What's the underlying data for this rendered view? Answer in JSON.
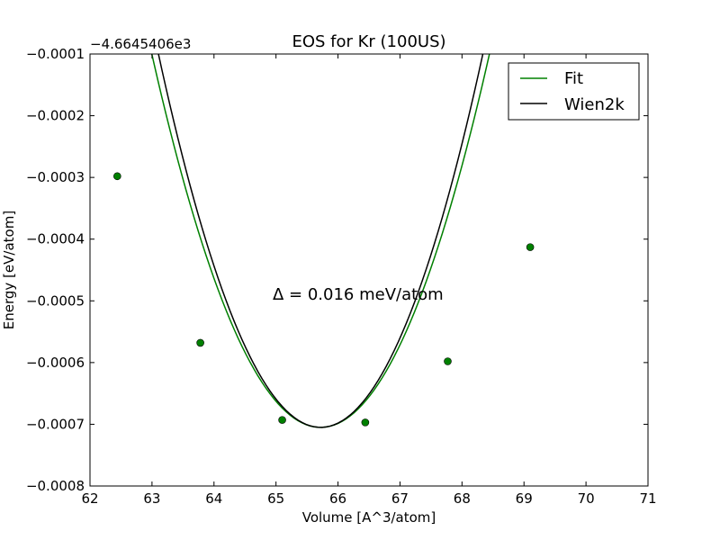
{
  "chart_data": {
    "type": "line",
    "title": "EOS for Kr (100US)",
    "xlabel": "Volume [A^3/atom]",
    "ylabel": "Energy [eV/atom]",
    "y_offset_label": "−4.6645406e3",
    "annotation": "Δ = 0.016 meV/atom",
    "xlim": [
      62,
      71
    ],
    "ylim": [
      -0.0008,
      -0.0001
    ],
    "x_ticks": [
      62,
      63,
      64,
      65,
      66,
      67,
      68,
      69,
      70,
      71
    ],
    "x_tick_labels": [
      "62",
      "63",
      "64",
      "65",
      "66",
      "67",
      "68",
      "69",
      "70",
      "71"
    ],
    "y_ticks": [
      -0.0008,
      -0.0007,
      -0.0006,
      -0.0005,
      -0.0004,
      -0.0003,
      -0.0002,
      -0.0001
    ],
    "y_tick_labels": [
      "−0.0008",
      "−0.0007",
      "−0.0006",
      "−0.0005",
      "−0.0004",
      "−0.0003",
      "−0.0002",
      "−0.0001"
    ],
    "legend_position": "top-right",
    "grid": false,
    "series": [
      {
        "name": "Fit",
        "color": "#008000",
        "style": "line",
        "model": "quadratic",
        "x_min": 62.45,
        "x_max": 70.2,
        "x0": 65.72,
        "e0": -0.000705,
        "curvature": 8.16e-05
      },
      {
        "name": "Wien2k",
        "color": "#000000",
        "style": "line",
        "model": "quadratic",
        "x_min": 62.45,
        "x_max": 70.2,
        "x0": 65.72,
        "e0": -0.000705,
        "curvature": 8.84e-05
      }
    ],
    "points": {
      "color": "#008000",
      "x": [
        62.44,
        63.78,
        65.1,
        66.44,
        67.77,
        69.1
      ],
      "y": [
        -0.000298,
        -0.000568,
        -0.000693,
        -0.000697,
        -0.000598,
        -0.000413
      ]
    }
  }
}
